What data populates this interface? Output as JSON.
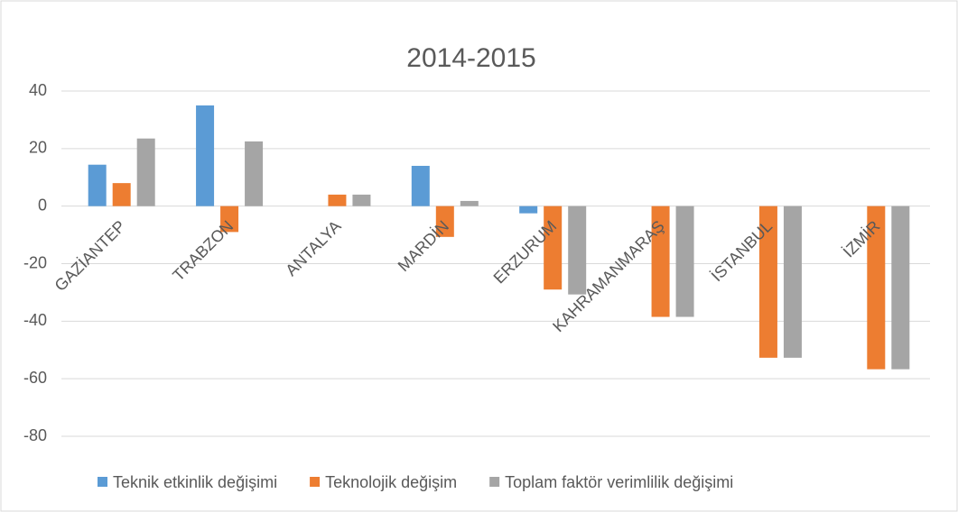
{
  "chart_data": {
    "type": "bar",
    "title": "2014-2015",
    "categories": [
      "GAZİANTEP",
      "TRABZON",
      "ANTALYA",
      "MARDİN",
      "ERZURUM",
      "KAHRAMANMARAŞ",
      "İSTANBUL",
      "İZMİR"
    ],
    "series": [
      {
        "name": "Teknik etkinlik değişimi",
        "color": "#5b9bd5",
        "values": [
          14.4,
          35,
          0,
          14,
          -2.5,
          0,
          0,
          0
        ]
      },
      {
        "name": "Teknolojik değişim",
        "color": "#ed7d31",
        "values": [
          8,
          -9,
          4,
          -10.7,
          -29,
          -38.5,
          -52.7,
          -56.7
        ]
      },
      {
        "name": "Toplam faktör verimlilik değişimi",
        "color": "#a5a5a5",
        "values": [
          23.5,
          22.5,
          4,
          1.8,
          -30.7,
          -38.5,
          -52.7,
          -56.7
        ]
      }
    ],
    "ylim": [
      -80,
      40
    ],
    "yticks": [
      -80,
      -60,
      -40,
      -20,
      0,
      20,
      40
    ],
    "grid": true,
    "legend": "bottom"
  }
}
